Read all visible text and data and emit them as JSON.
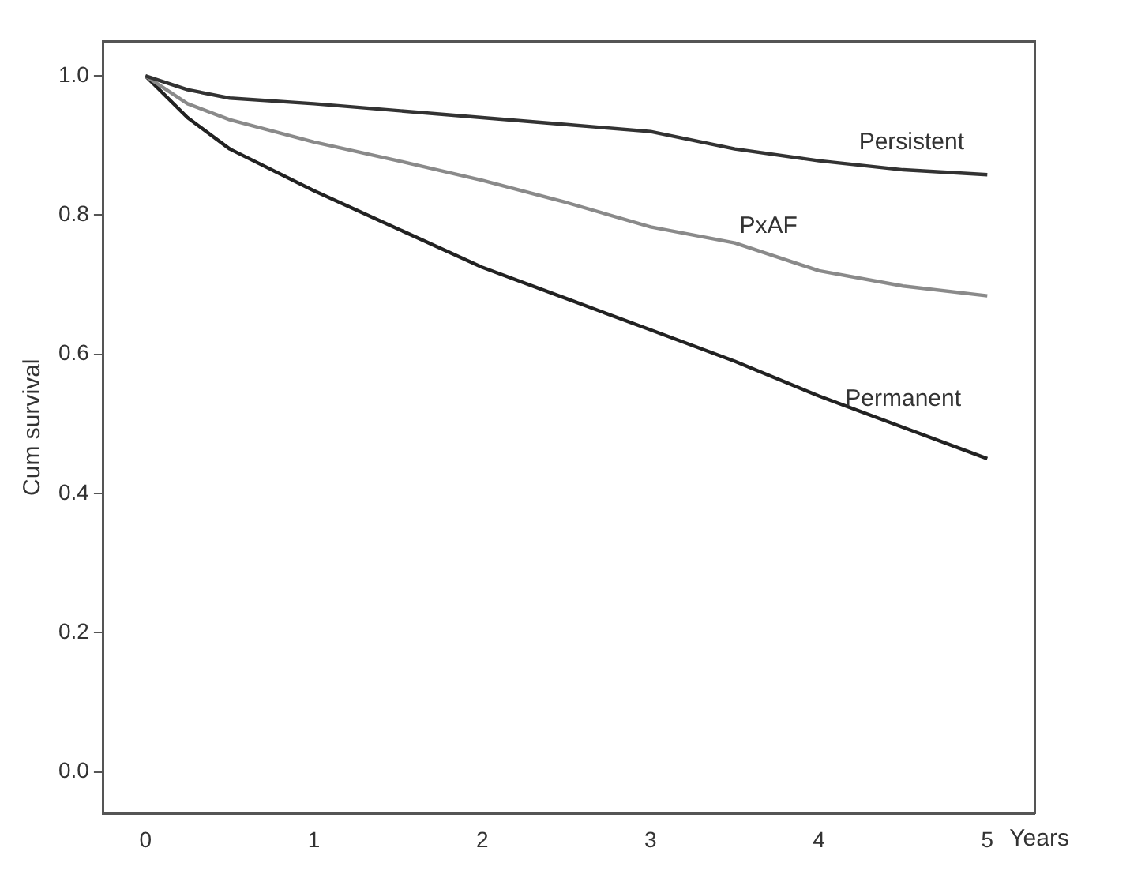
{
  "chart_data": {
    "type": "line",
    "xlabel": "Years",
    "ylabel": "Cum survival",
    "xlim": [
      -0.25,
      5.28
    ],
    "ylim": [
      -0.06,
      1.05
    ],
    "xticks": [
      0,
      1,
      2,
      3,
      4,
      5
    ],
    "yticks": [
      {
        "value": 0,
        "label": "0.0"
      },
      {
        "value": 0.2,
        "label": "0.2"
      },
      {
        "value": 0.4,
        "label": "0.4"
      },
      {
        "value": 0.6,
        "label": "0.6"
      },
      {
        "value": 0.8,
        "label": "0.8"
      },
      {
        "value": 1,
        "label": "1.0"
      }
    ],
    "grid": false,
    "legend": false,
    "marker": "none",
    "line_style": "solid",
    "series": [
      {
        "name": "Persistent",
        "color": "#333333",
        "x": [
          0,
          0.25,
          0.5,
          1,
          1.5,
          2,
          2.5,
          3,
          3.5,
          4,
          4.5,
          5
        ],
        "values": [
          1.0,
          0.98,
          0.968,
          0.96,
          0.95,
          0.94,
          0.93,
          0.92,
          0.895,
          0.878,
          0.865,
          0.858
        ]
      },
      {
        "name": "PxAF",
        "color": "#8a8a8a",
        "x": [
          0,
          0.25,
          0.5,
          1,
          1.5,
          2,
          2.5,
          3,
          3.5,
          4,
          4.5,
          5
        ],
        "values": [
          1.0,
          0.96,
          0.937,
          0.905,
          0.878,
          0.85,
          0.818,
          0.783,
          0.76,
          0.72,
          0.698,
          0.684
        ]
      },
      {
        "name": "Permanent",
        "color": "#222222",
        "x": [
          0,
          0.25,
          0.5,
          1,
          1.5,
          2,
          2.5,
          3,
          3.5,
          4,
          4.5,
          5
        ],
        "values": [
          1.0,
          0.94,
          0.895,
          0.835,
          0.78,
          0.725,
          0.68,
          0.635,
          0.59,
          0.54,
          0.495,
          0.45
        ]
      }
    ]
  }
}
